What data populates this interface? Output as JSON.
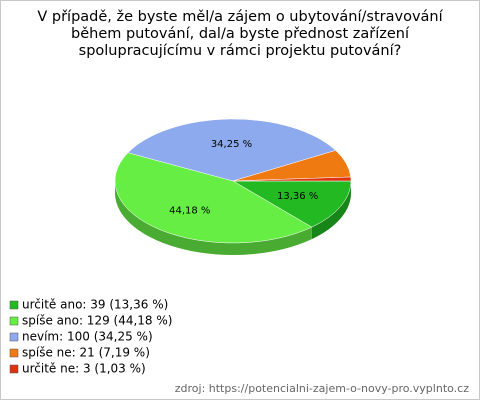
{
  "chart_data": {
    "type": "pie",
    "title": "V případě, že byste měl/a zájem o ubytování/stravování během putování, dal/a byste přednost zařízení spolupracujícímu v rámci projektu putování?",
    "categories": [
      "určitě ano: 39 (13,36 %)",
      "spíše ano: 129 (44,18 %)",
      "nevím: 100 (34,25 %)",
      "spíše ne: 21 (7,19 %)",
      "určitě ne: 3 (1,03 %)"
    ],
    "values": [
      13.36,
      44.18,
      34.25,
      7.19,
      1.03
    ],
    "value_labels": [
      "13,36 %",
      "44,18 %",
      "34,25 %",
      null,
      null
    ],
    "colors": [
      "#22b922",
      "#66ee44",
      "#8eaaee",
      "#ee7a11",
      "#dd3311"
    ],
    "source": "zdroj: https://potencialni-zajem-o-novy-pro.vyplnto.cz"
  }
}
